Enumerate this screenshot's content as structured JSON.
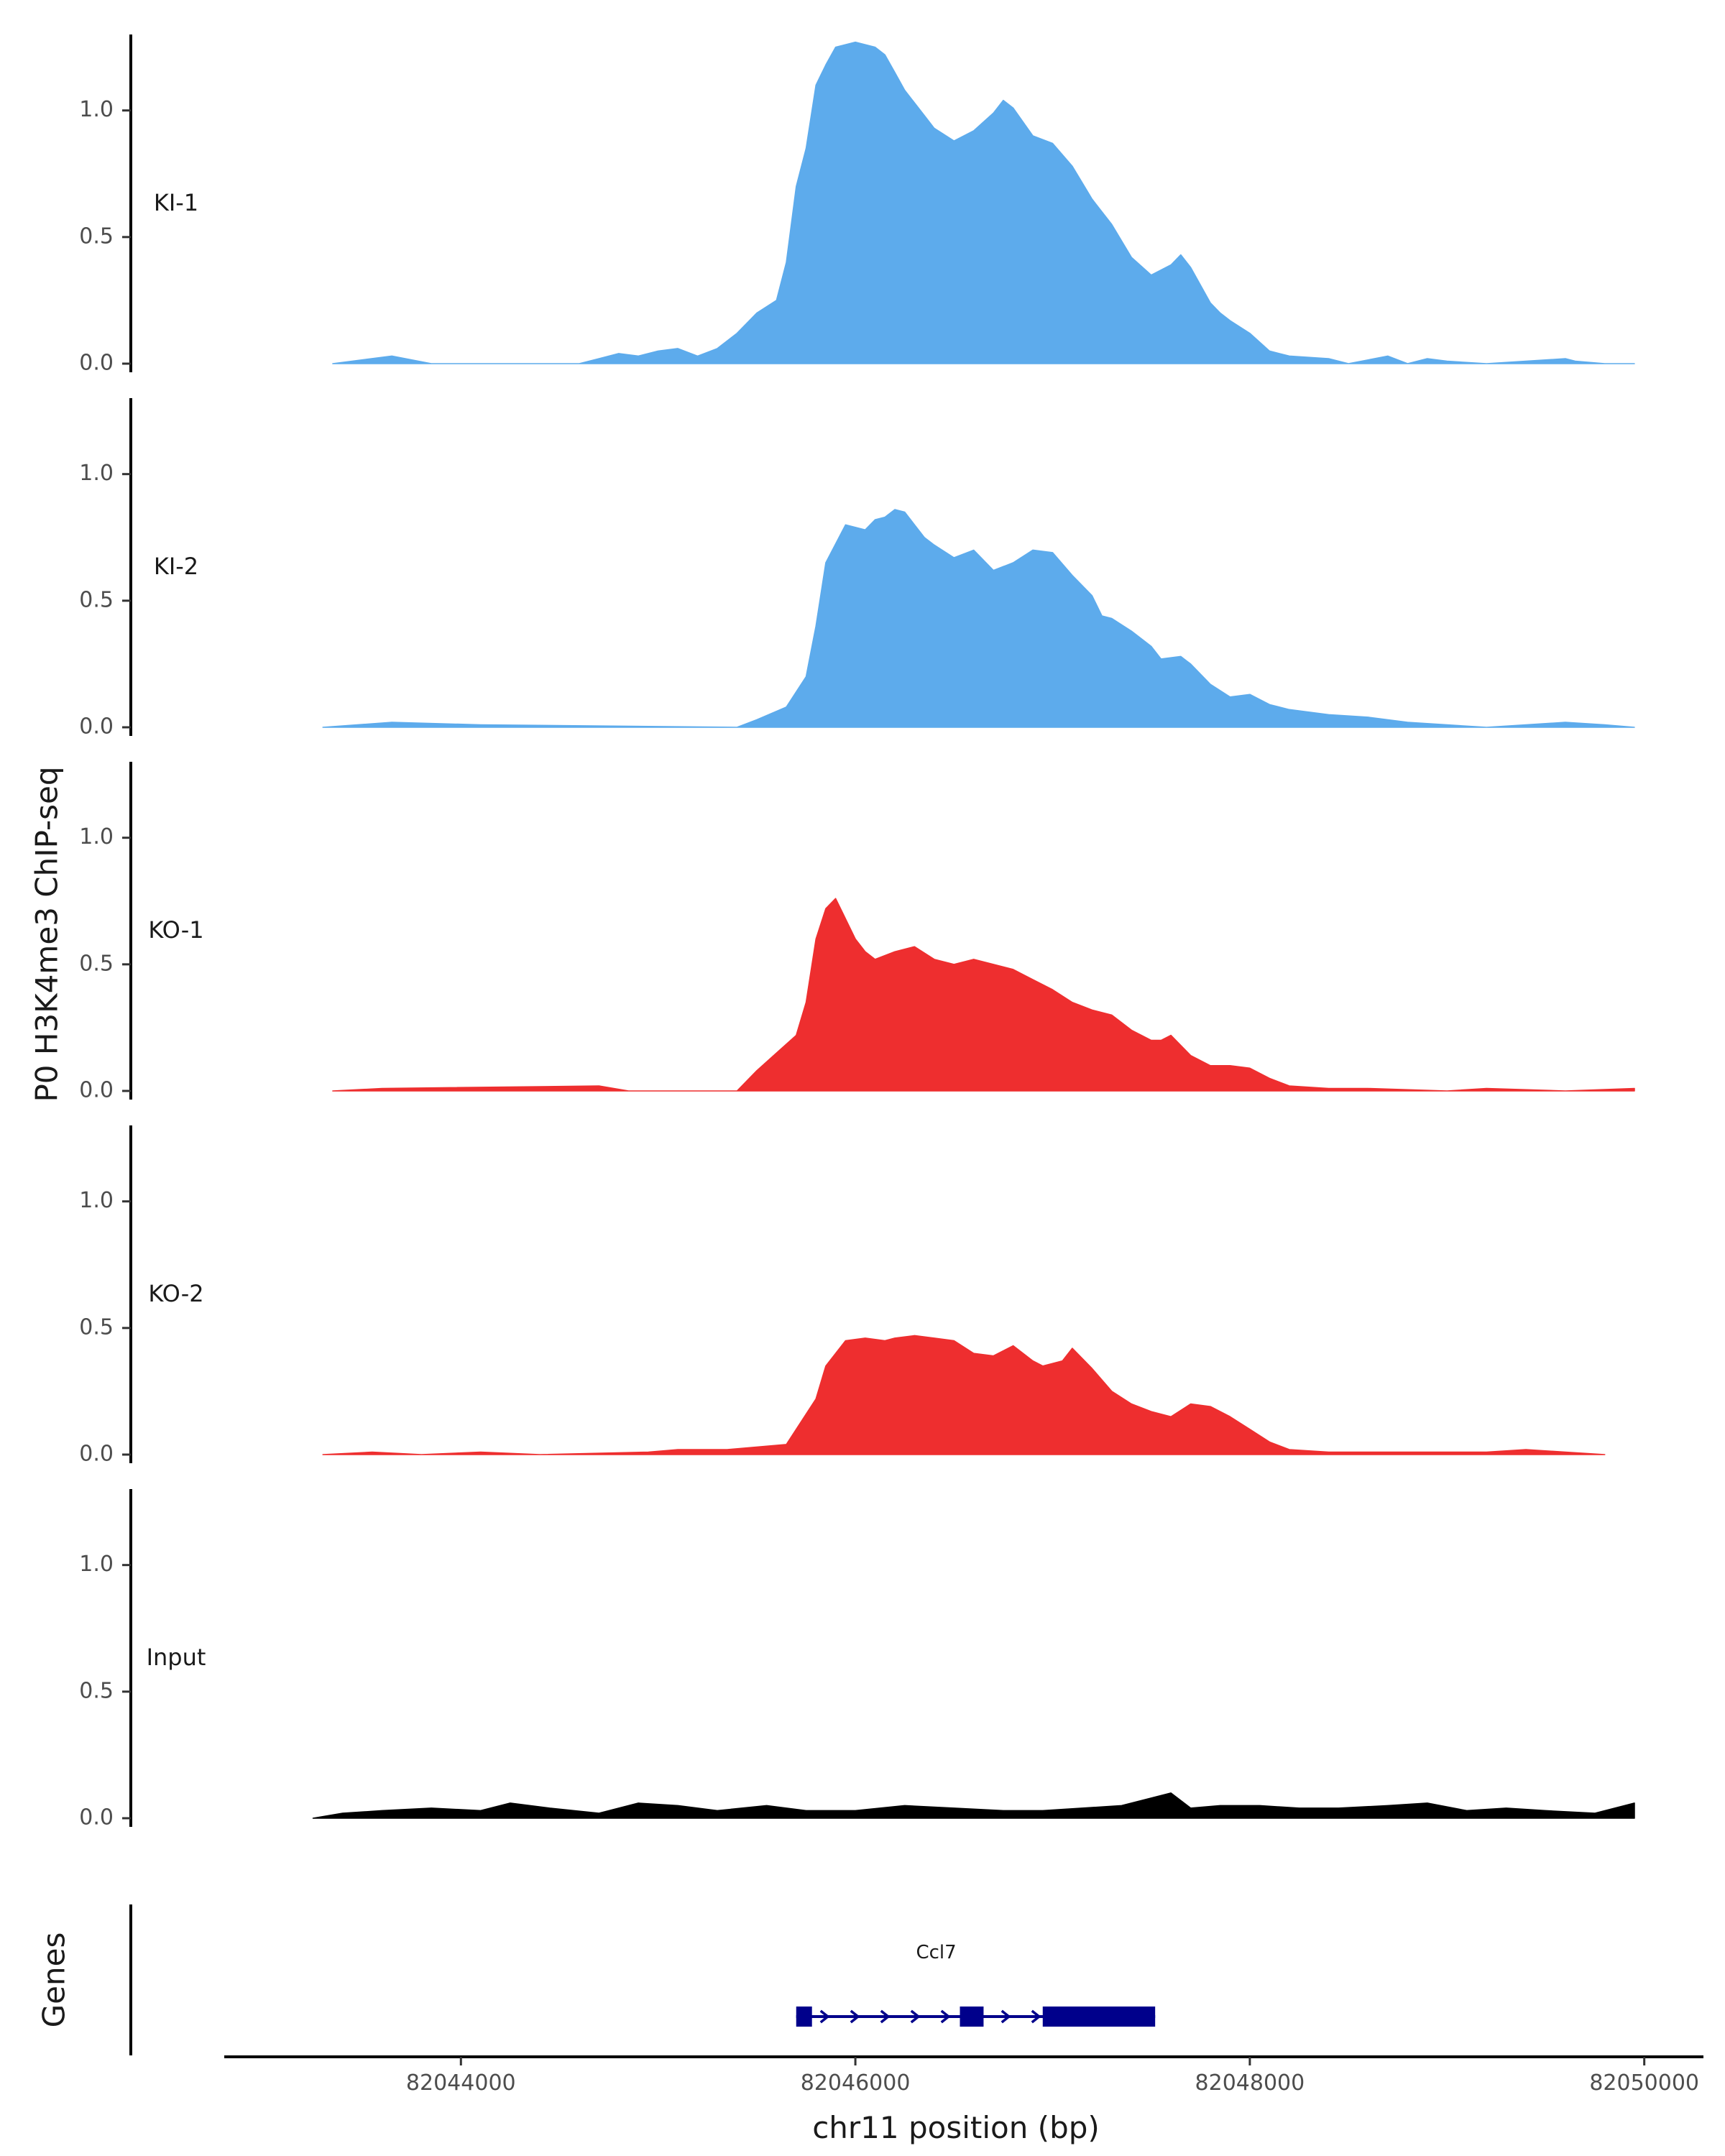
{
  "chart_data": {
    "type": "area",
    "ylabel": "P0 H3K4me3 ChIP-seq",
    "xlabel": "chr11 position (bp)",
    "xlim": [
      82042800,
      82050300
    ],
    "ylim": [
      0,
      1.3
    ],
    "y_ticks": [
      0.0,
      0.5,
      1.0
    ],
    "y_tick_labels": [
      "0.0",
      "0.5",
      "1.0"
    ],
    "x_ticks": [
      82044000,
      82046000,
      82048000,
      82050000
    ],
    "x_tick_labels": [
      "82044000",
      "82046000",
      "82048000",
      "82050000"
    ],
    "grid": false,
    "series": [
      {
        "name": "KI-1",
        "color": "#5dabec",
        "x": [
          82043350,
          82043650,
          82043850,
          82044600,
          82044700,
          82044800,
          82044900,
          82045000,
          82045100,
          82045200,
          82045300,
          82045400,
          82045500,
          82045600,
          82045650,
          82045700,
          82045750,
          82045800,
          82045850,
          82045900,
          82046000,
          82046100,
          82046150,
          82046200,
          82046250,
          82046300,
          82046350,
          82046400,
          82046500,
          82046600,
          82046700,
          82046750,
          82046800,
          82046900,
          82047000,
          82047100,
          82047200,
          82047300,
          82047400,
          82047500,
          82047600,
          82047650,
          82047700,
          82047800,
          82047850,
          82047900,
          82048000,
          82048100,
          82048200,
          82048400,
          82048500,
          82048700,
          82048800,
          82048900,
          82049000,
          82049200,
          82049600,
          82049650,
          82049800,
          82049950
        ],
        "values": [
          0.0,
          0.03,
          0.0,
          0.0,
          0.02,
          0.04,
          0.03,
          0.05,
          0.06,
          0.03,
          0.06,
          0.12,
          0.2,
          0.25,
          0.4,
          0.7,
          0.85,
          1.1,
          1.18,
          1.25,
          1.27,
          1.25,
          1.22,
          1.15,
          1.08,
          1.03,
          0.98,
          0.93,
          0.88,
          0.92,
          0.99,
          1.04,
          1.01,
          0.9,
          0.87,
          0.78,
          0.65,
          0.55,
          0.42,
          0.35,
          0.39,
          0.43,
          0.38,
          0.24,
          0.2,
          0.17,
          0.12,
          0.05,
          0.03,
          0.02,
          0.0,
          0.03,
          0.0,
          0.02,
          0.01,
          0.0,
          0.02,
          0.01,
          0.0,
          0.0
        ],
        "label_y": 0.63
      },
      {
        "name": "KI-2",
        "color": "#5dabec",
        "x": [
          82043300,
          82043650,
          82044100,
          82045400,
          82045500,
          82045650,
          82045750,
          82045800,
          82045850,
          82045950,
          82046050,
          82046100,
          82046150,
          82046200,
          82046250,
          82046300,
          82046350,
          82046400,
          82046500,
          82046600,
          82046700,
          82046800,
          82046900,
          82047000,
          82047100,
          82047200,
          82047250,
          82047300,
          82047400,
          82047500,
          82047550,
          82047650,
          82047700,
          82047800,
          82047900,
          82048000,
          82048100,
          82048200,
          82048400,
          82048600,
          82048800,
          82049000,
          82049200,
          82049400,
          82049600,
          82049800,
          82049950
        ],
        "values": [
          0.0,
          0.02,
          0.01,
          0.0,
          0.03,
          0.08,
          0.2,
          0.4,
          0.65,
          0.8,
          0.78,
          0.82,
          0.83,
          0.86,
          0.85,
          0.8,
          0.75,
          0.72,
          0.67,
          0.7,
          0.62,
          0.65,
          0.7,
          0.69,
          0.6,
          0.52,
          0.44,
          0.43,
          0.38,
          0.32,
          0.27,
          0.28,
          0.25,
          0.17,
          0.12,
          0.13,
          0.09,
          0.07,
          0.05,
          0.04,
          0.02,
          0.01,
          0.0,
          0.01,
          0.02,
          0.01,
          0.0
        ],
        "label_y": 0.63
      },
      {
        "name": "KO-1",
        "color": "#ee2e2f",
        "x": [
          82043350,
          82043600,
          82044700,
          82044850,
          82045400,
          82045500,
          82045600,
          82045700,
          82045750,
          82045800,
          82045850,
          82045900,
          82045950,
          82046000,
          82046050,
          82046100,
          82046200,
          82046300,
          82046400,
          82046500,
          82046600,
          82046700,
          82046800,
          82046900,
          82047000,
          82047100,
          82047200,
          82047300,
          82047400,
          82047500,
          82047550,
          82047600,
          82047700,
          82047800,
          82047900,
          82048000,
          82048100,
          82048200,
          82048400,
          82048600,
          82049000,
          82049200,
          82049600,
          82049950
        ],
        "values": [
          0.0,
          0.01,
          0.02,
          0.0,
          0.0,
          0.08,
          0.15,
          0.22,
          0.35,
          0.6,
          0.72,
          0.76,
          0.68,
          0.6,
          0.55,
          0.52,
          0.55,
          0.57,
          0.52,
          0.5,
          0.52,
          0.5,
          0.48,
          0.44,
          0.4,
          0.35,
          0.32,
          0.3,
          0.24,
          0.2,
          0.2,
          0.22,
          0.14,
          0.1,
          0.1,
          0.09,
          0.05,
          0.02,
          0.01,
          0.01,
          0.0,
          0.01,
          0.0,
          0.01
        ],
        "label_y": 0.63
      },
      {
        "name": "KO-2",
        "color": "#ee2e2f",
        "x": [
          82043300,
          82043550,
          82043800,
          82044100,
          82044400,
          82044950,
          82045100,
          82045350,
          82045650,
          82045800,
          82045850,
          82045950,
          82046050,
          82046150,
          82046200,
          82046300,
          82046400,
          82046500,
          82046600,
          82046700,
          82046800,
          82046900,
          82046950,
          82047050,
          82047100,
          82047200,
          82047300,
          82047400,
          82047500,
          82047600,
          82047700,
          82047800,
          82047900,
          82048000,
          82048100,
          82048200,
          82048400,
          82048700,
          82049000,
          82049200,
          82049400,
          82049600,
          82049800
        ],
        "values": [
          0.0,
          0.01,
          0.0,
          0.01,
          0.0,
          0.01,
          0.02,
          0.02,
          0.04,
          0.22,
          0.35,
          0.45,
          0.46,
          0.45,
          0.46,
          0.47,
          0.46,
          0.45,
          0.4,
          0.39,
          0.43,
          0.37,
          0.35,
          0.37,
          0.42,
          0.34,
          0.25,
          0.2,
          0.17,
          0.15,
          0.2,
          0.19,
          0.15,
          0.1,
          0.05,
          0.02,
          0.01,
          0.01,
          0.01,
          0.01,
          0.02,
          0.01,
          0.0
        ],
        "label_y": 0.63
      },
      {
        "name": "Input",
        "color": "#000000",
        "x": [
          82043250,
          82043400,
          82043600,
          82043850,
          82044100,
          82044250,
          82044450,
          82044700,
          82044900,
          82045100,
          82045300,
          82045550,
          82045750,
          82046000,
          82046250,
          82046500,
          82046750,
          82046950,
          82047150,
          82047350,
          82047500,
          82047600,
          82047700,
          82047850,
          82048050,
          82048250,
          82048450,
          82048700,
          82048900,
          82049100,
          82049300,
          82049500,
          82049750,
          82049950
        ],
        "values": [
          0.0,
          0.02,
          0.03,
          0.04,
          0.03,
          0.06,
          0.04,
          0.02,
          0.06,
          0.05,
          0.03,
          0.05,
          0.03,
          0.03,
          0.05,
          0.04,
          0.03,
          0.03,
          0.04,
          0.05,
          0.08,
          0.1,
          0.04,
          0.05,
          0.05,
          0.04,
          0.04,
          0.05,
          0.06,
          0.03,
          0.04,
          0.03,
          0.02,
          0.06
        ],
        "label_y": 0.63
      }
    ],
    "genes": {
      "title": "Genes",
      "gene_name": "Ccl7",
      "color": "#00008b",
      "strand": "+",
      "start": 82045700,
      "end": 82047520,
      "exons": [
        [
          82045700,
          82045780
        ],
        [
          82046530,
          82046650
        ],
        [
          82046950,
          82047520
        ]
      ]
    }
  }
}
